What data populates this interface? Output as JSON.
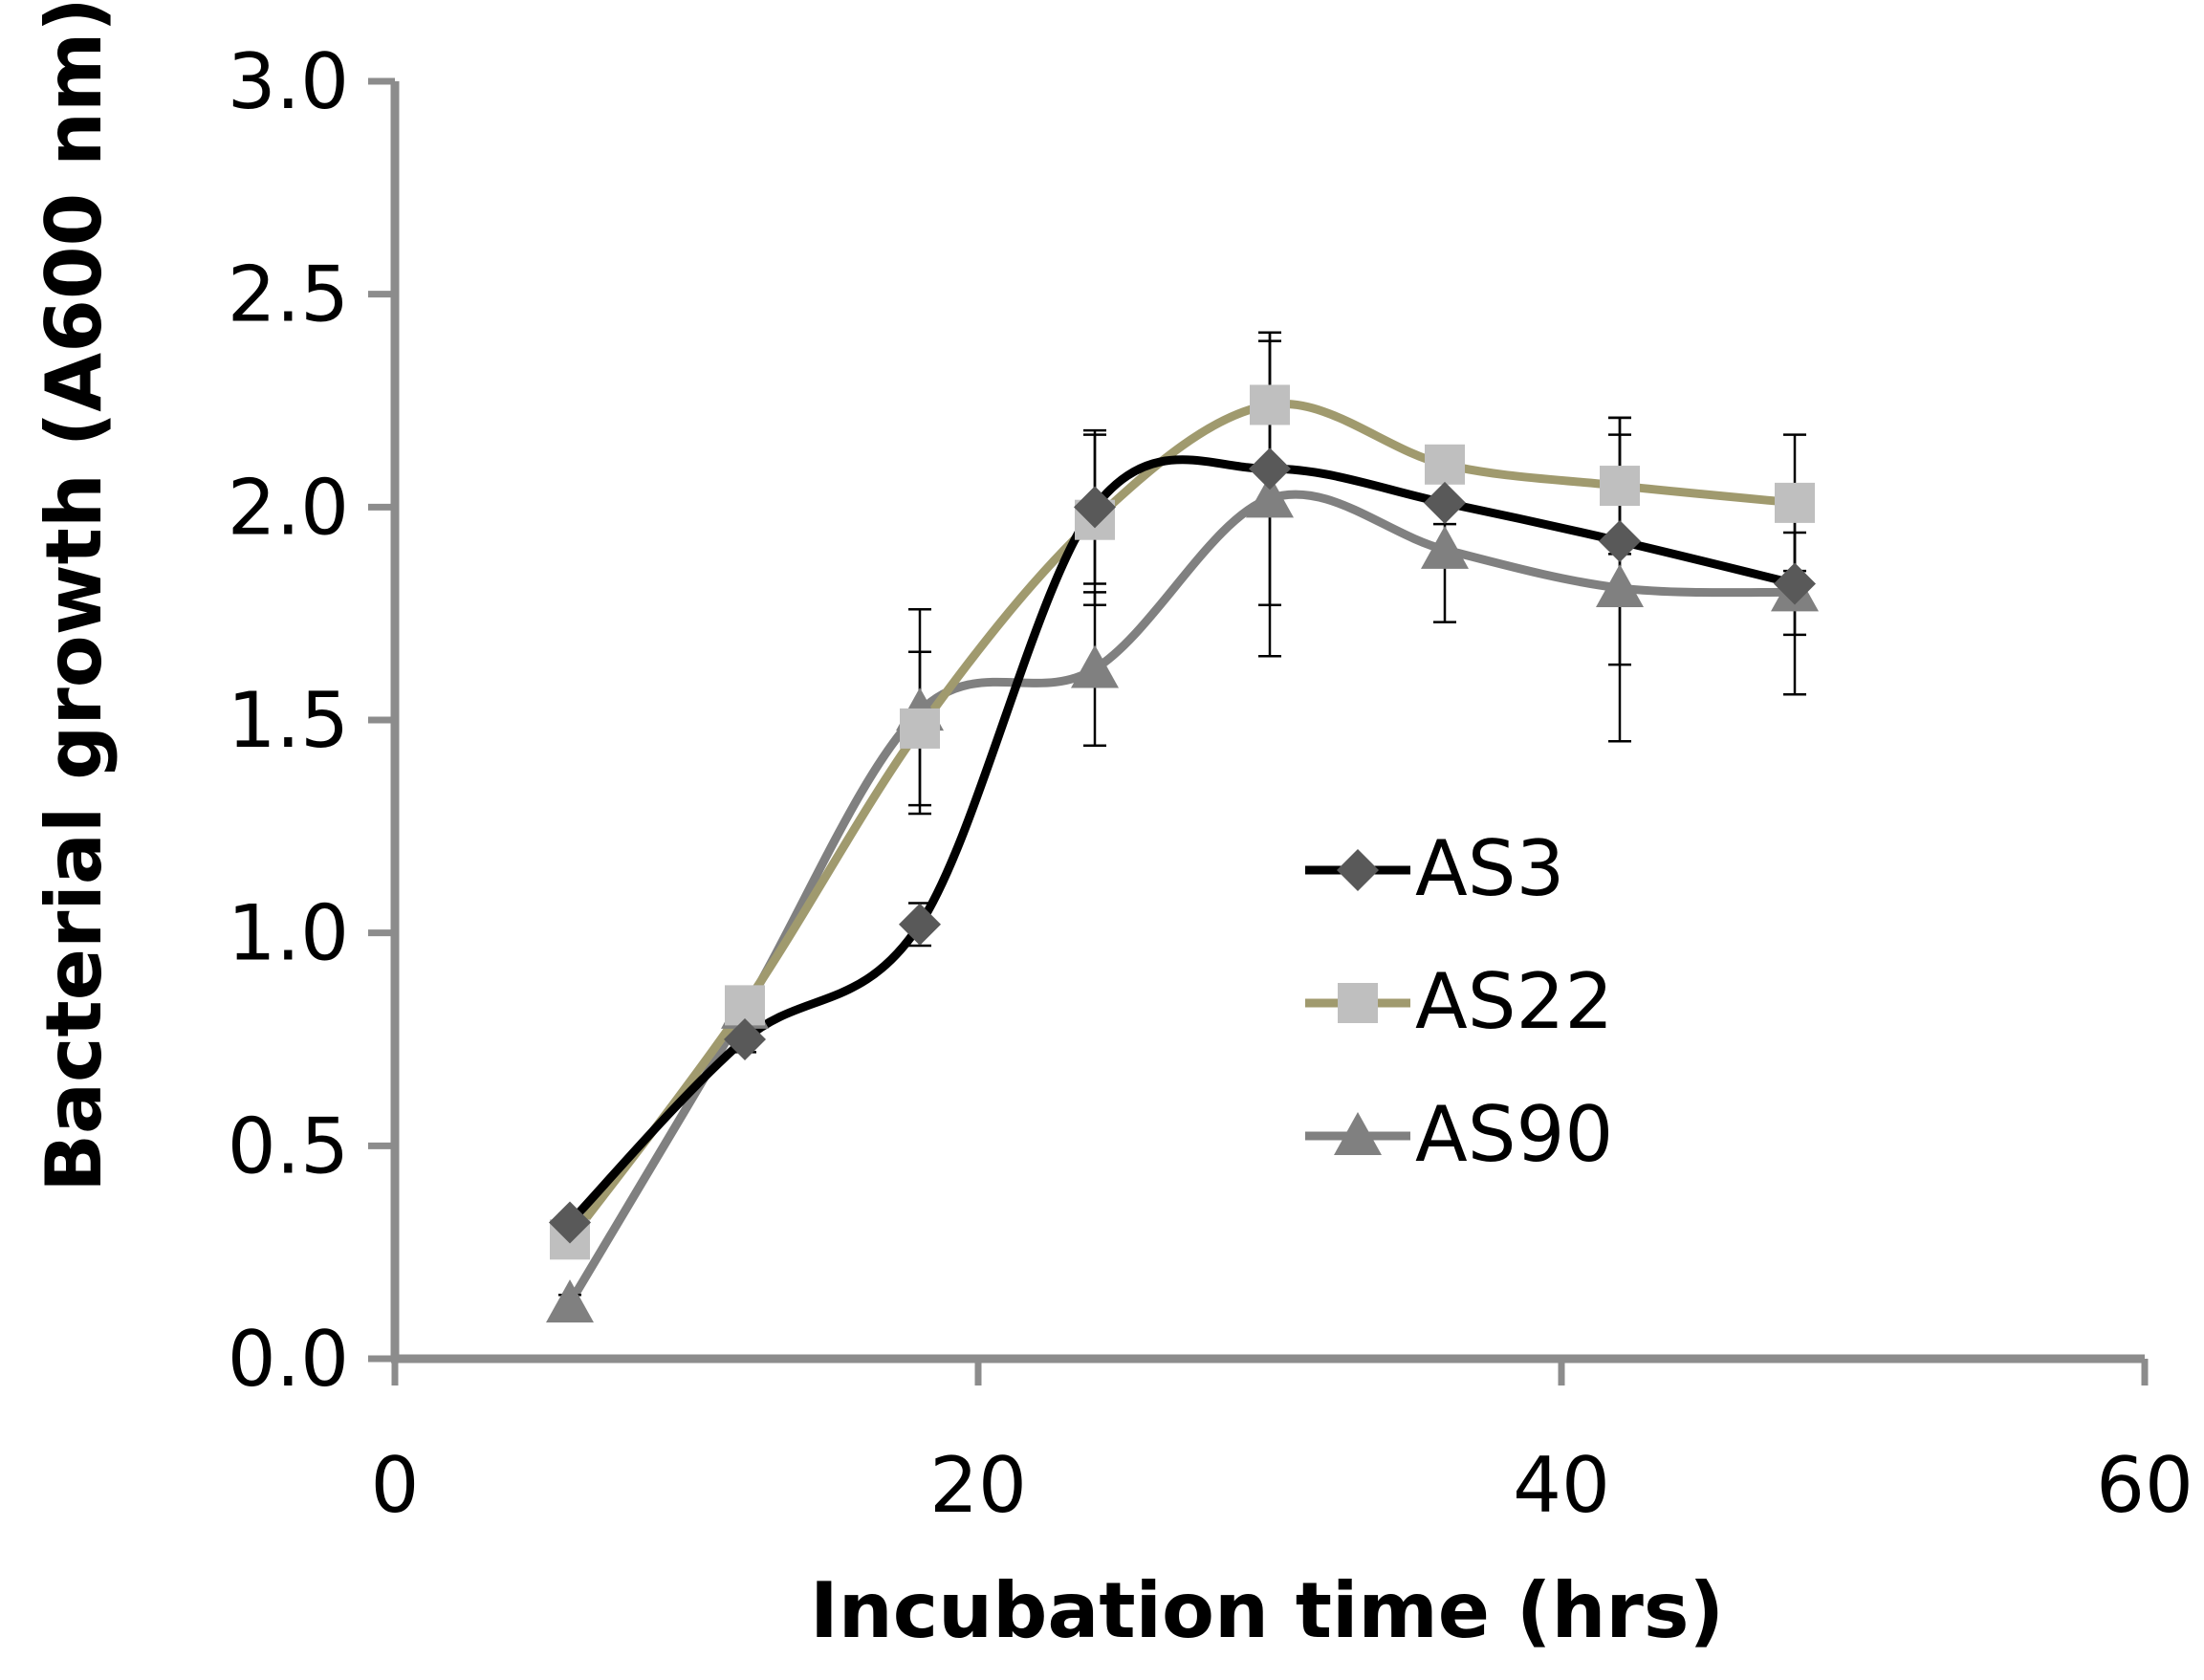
{
  "chart_data": {
    "type": "line",
    "title": "",
    "xlabel": "Incubation time (hrs)",
    "ylabel": "Bacterial growth (A600 nm)",
    "xlim": [
      0,
      60
    ],
    "ylim": [
      0,
      3.0
    ],
    "x_ticks": [
      0,
      20,
      40,
      60
    ],
    "x_tick_labels": [
      "0",
      "20",
      "40",
      "60"
    ],
    "y_ticks": [
      0,
      0.5,
      1.0,
      1.5,
      2.0,
      2.5,
      3.0
    ],
    "y_tick_labels": [
      "0.0",
      "0.5",
      "1.0",
      "1.5",
      "2.0",
      "2.5",
      "3.0"
    ],
    "grid": false,
    "legend_position": "center-right",
    "smooth": true,
    "series": [
      {
        "name": "AS3",
        "marker": "diamond",
        "line_color": "#000000",
        "marker_color": "#595959",
        "x": [
          6,
          12,
          18,
          24,
          30,
          36,
          42,
          48
        ],
        "y": [
          0.32,
          0.75,
          1.02,
          2.0,
          2.09,
          2.01,
          1.92,
          1.82
        ],
        "error": [
          0.02,
          0.03,
          0.05,
          0.18,
          0.32,
          0.05,
          0.29,
          0.12
        ]
      },
      {
        "name": "AS22",
        "marker": "square",
        "line_color": "#A09A6E",
        "marker_color": "#BFBFBF",
        "x": [
          6,
          12,
          18,
          24,
          30,
          36,
          42,
          48
        ],
        "y": [
          0.28,
          0.83,
          1.48,
          1.97,
          2.24,
          2.1,
          2.05,
          2.01
        ],
        "error": [
          0.02,
          0.03,
          0.18,
          0.2,
          0.17,
          0.04,
          0.16,
          0.16
        ]
      },
      {
        "name": "AS90",
        "marker": "triangle",
        "line_color": "#808080",
        "marker_color": "#808080",
        "x": [
          6,
          12,
          18,
          24,
          30,
          36,
          42,
          48
        ],
        "y": [
          0.13,
          0.82,
          1.52,
          1.62,
          2.02,
          1.9,
          1.81,
          1.8
        ],
        "error": [
          0.02,
          0.03,
          0.24,
          0.18,
          0.37,
          0.17,
          0.36,
          0.24
        ]
      }
    ]
  }
}
